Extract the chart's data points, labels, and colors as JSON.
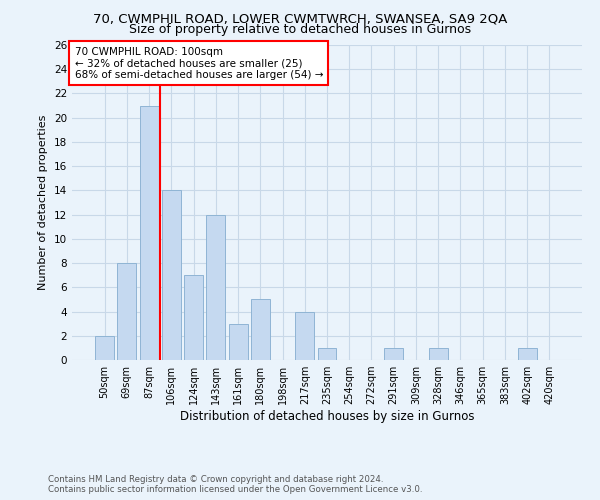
{
  "title1": "70, CWMPHIL ROAD, LOWER CWMTWRCH, SWANSEA, SA9 2QA",
  "title2": "Size of property relative to detached houses in Gurnos",
  "xlabel": "Distribution of detached houses by size in Gurnos",
  "ylabel": "Number of detached properties",
  "footnote": "Contains HM Land Registry data © Crown copyright and database right 2024.\nContains public sector information licensed under the Open Government Licence v3.0.",
  "categories": [
    "50sqm",
    "69sqm",
    "87sqm",
    "106sqm",
    "124sqm",
    "143sqm",
    "161sqm",
    "180sqm",
    "198sqm",
    "217sqm",
    "235sqm",
    "254sqm",
    "272sqm",
    "291sqm",
    "309sqm",
    "328sqm",
    "346sqm",
    "365sqm",
    "383sqm",
    "402sqm",
    "420sqm"
  ],
  "values": [
    2,
    8,
    21,
    14,
    7,
    12,
    3,
    5,
    0,
    4,
    1,
    0,
    0,
    1,
    0,
    1,
    0,
    0,
    0,
    1,
    0
  ],
  "bar_color": "#c5d9f0",
  "bar_edge_color": "#8fb4d4",
  "vline_color": "red",
  "vline_pos": 2.5,
  "annotation_text": "70 CWMPHIL ROAD: 100sqm\n← 32% of detached houses are smaller (25)\n68% of semi-detached houses are larger (54) →",
  "annotation_box_color": "white",
  "annotation_box_edge_color": "red",
  "ylim": [
    0,
    26
  ],
  "yticks": [
    0,
    2,
    4,
    6,
    8,
    10,
    12,
    14,
    16,
    18,
    20,
    22,
    24,
    26
  ],
  "grid_color": "#c8d8e8",
  "background_color": "#eaf3fb",
  "title1_fontsize": 9.5,
  "title2_fontsize": 9
}
